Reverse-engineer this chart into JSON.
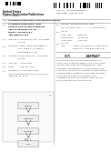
{
  "background_color": "#f5f5f0",
  "page_background": "#ffffff",
  "barcode_color": "#000000",
  "header_left_line1": "United States",
  "header_left_line2": "Patent Application Publication",
  "header_left_line3": "Hammonds et al.",
  "header_right_line1": "Pub. No.: US 2014/0248668 A1",
  "header_right_line2": "Pub. Date:   Sep. 04, 2014",
  "divider_color": "#999999",
  "text_dark": "#222222",
  "text_mid": "#444444",
  "text_light": "#666666",
  "left_entries": [
    [
      "(54)",
      "3-HYDROXYPROPIONIC ACID\nPRODUCTION BY RECOMBINANT\nYEASTS EXPRESSING AN\nINSECT ASPARTATE 1-\nDECARBOXYLASE"
    ],
    [
      "(71)",
      "Applicants: Genomatica, Inc.,\n              San Diego, CA (US)"
    ],
    [
      "(72)",
      "Inventors:  Mark J. Burk, San Diego,\n              CA (US); Robin E. Osterhout,\n              San Diego, CA (US)"
    ],
    [
      "(73)",
      "Assignee: Genomatica, Inc., San Diego,\n             CA (US)"
    ],
    [
      "(21)",
      "Appl. No.:   14/191,384"
    ],
    [
      "(22)",
      "Filed:          Feb. 26, 2014"
    ],
    [
      "(60)",
      "Related U.S. Application Data\n Provisional application No. 61/769,664,\n filed Feb. 27, 2013."
    ]
  ],
  "right_top_entries": [
    [
      "(30)",
      "Foreign Application Priority Data"
    ],
    [
      "date_row",
      "Feb. 27, 2013  (DK) ............ PA 2013 70112"
    ],
    [
      "(51)",
      "Int. Cl."
    ],
    [
      "cl1",
      "C12P 7/42         (2006.01)"
    ],
    [
      "cl2",
      "C12N 15/81        (2006.01)"
    ],
    [
      "cl3",
      "C12N 9/88         (2006.01)"
    ],
    [
      "(52)",
      "U.S. Cl."
    ],
    [
      "cpc",
      "CPC ........... C12P 7/42 (2013.01); C12N 15/81\n                   (2013.01); C12N 9/88 (2013.01)"
    ]
  ],
  "abstract_title": "(57)                    ABSTRACT",
  "abstract_body": "The present disclosure provides methods for producing 3-hydroxypropionic acid (3-HP) using recombinant yeast cells expressing an insect aspartate 1-decarboxylase (ADC) enzyme that catalyzes conversion of aspartate to beta-alanine. Combined with additional biosynthetic pathway enzymes, the yeast cells produce 3-HP. Compositions and recombinant yeast cells for 3-HP production are also provided.",
  "fig_label": "1/3",
  "fig_caption": "FIG. 1"
}
